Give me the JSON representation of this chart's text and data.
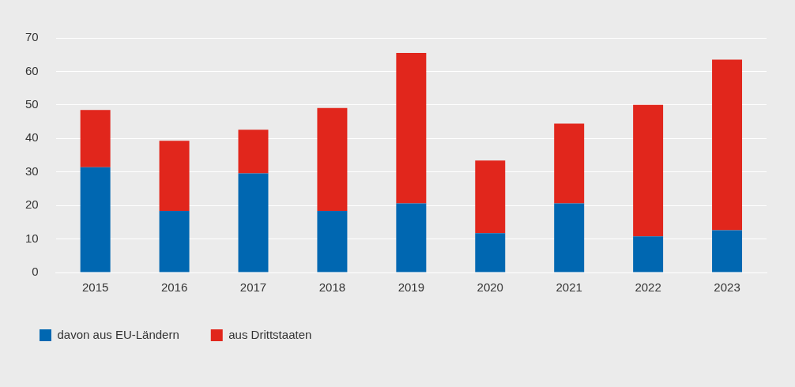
{
  "chart_data": {
    "type": "bar",
    "stacked": true,
    "categories": [
      "2015",
      "2016",
      "2017",
      "2018",
      "2019",
      "2020",
      "2021",
      "2022",
      "2023"
    ],
    "series": [
      {
        "name": "davon aus EU-Ländern",
        "color": "#0067b1",
        "values": [
          31.4,
          18.4,
          29.6,
          18.4,
          20.6,
          11.7,
          20.6,
          10.8,
          12.6
        ]
      },
      {
        "name": "aus Drittstaaten",
        "color": "#e1261c",
        "values": [
          17.1,
          20.9,
          13.0,
          30.7,
          44.9,
          21.7,
          23.8,
          39.2,
          50.9
        ]
      }
    ],
    "ylim": [
      0,
      70
    ],
    "yticks": [
      0,
      10,
      20,
      30,
      40,
      50,
      60,
      70
    ],
    "grid": "y",
    "legend": "bottom left"
  }
}
